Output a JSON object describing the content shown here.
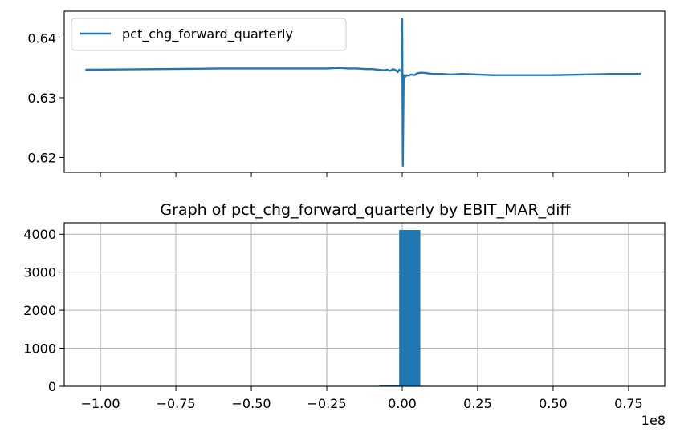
{
  "chart_data": [
    {
      "type": "line",
      "title": "",
      "xlabel": "",
      "ylabel": "",
      "xlim": [
        -112000000,
        87000000
      ],
      "ylim": [
        0.6175,
        0.6445
      ],
      "yticks": [
        0.62,
        0.63,
        0.64
      ],
      "ytick_labels": [
        "0.62",
        "0.63",
        "0.64"
      ],
      "xticks": [
        -100000000,
        -75000000,
        -50000000,
        -25000000,
        0,
        25000000,
        50000000,
        75000000
      ],
      "grid": false,
      "legend": {
        "placement": "upper-left",
        "entries": [
          "pct_chg_forward_quarterly"
        ]
      },
      "series": [
        {
          "name": "pct_chg_forward_quarterly",
          "color": "#1f77b4",
          "x": [
            -105000000,
            -80000000,
            -60000000,
            -40000000,
            -30000000,
            -25000000,
            -21000000,
            -18000000,
            -15000000,
            -12000000,
            -10000000,
            -8000000,
            -6000000,
            -5000000,
            -4000000,
            -3000000,
            -2000000,
            -1500000,
            -1000000,
            -500000,
            -200000,
            0,
            200000,
            500000,
            1000000,
            1500000,
            2000000,
            3000000,
            4000000,
            5000000,
            6000000,
            7000000,
            10000000,
            13000000,
            16000000,
            20000000,
            25000000,
            30000000,
            35000000,
            40000000,
            50000000,
            60000000,
            70000000,
            79000000
          ],
          "y": [
            0.6347,
            0.6348,
            0.6349,
            0.6349,
            0.6349,
            0.6349,
            0.635,
            0.6349,
            0.6349,
            0.6348,
            0.6348,
            0.6347,
            0.6346,
            0.6347,
            0.6345,
            0.6348,
            0.6346,
            0.6343,
            0.6347,
            0.6345,
            0.6344,
            0.6432,
            0.6186,
            0.6338,
            0.6335,
            0.6338,
            0.6337,
            0.6339,
            0.6338,
            0.6341,
            0.6342,
            0.6342,
            0.634,
            0.634,
            0.6339,
            0.634,
            0.6339,
            0.6338,
            0.6338,
            0.6338,
            0.6338,
            0.6339,
            0.634,
            0.634
          ]
        }
      ]
    },
    {
      "type": "bar",
      "title": "Graph of pct_chg_forward_quarterly by EBIT_MAR_diff",
      "xlabel": "",
      "ylabel": "",
      "xlim": [
        -112000000,
        87000000
      ],
      "ylim": [
        0,
        4300
      ],
      "yticks": [
        0,
        1000,
        2000,
        3000,
        4000
      ],
      "ytick_labels": [
        "0",
        "1000",
        "2000",
        "3000",
        "4000"
      ],
      "xticks": [
        -100000000,
        -75000000,
        -50000000,
        -25000000,
        0,
        25000000,
        50000000,
        75000000
      ],
      "xtick_labels": [
        "−1.00",
        "−0.75",
        "−0.50",
        "−0.25",
        "0.00",
        "0.25",
        "0.50",
        "0.75"
      ],
      "offset_text": "1e8",
      "grid": true,
      "color": "#1f77b4",
      "bins": [
        {
          "x0": -7500000,
          "x1": -1000000,
          "count": 25
        },
        {
          "x0": -1000000,
          "x1": 6000000,
          "count": 4110
        },
        {
          "x0": 6000000,
          "x1": 9000000,
          "count": 3
        }
      ]
    }
  ]
}
